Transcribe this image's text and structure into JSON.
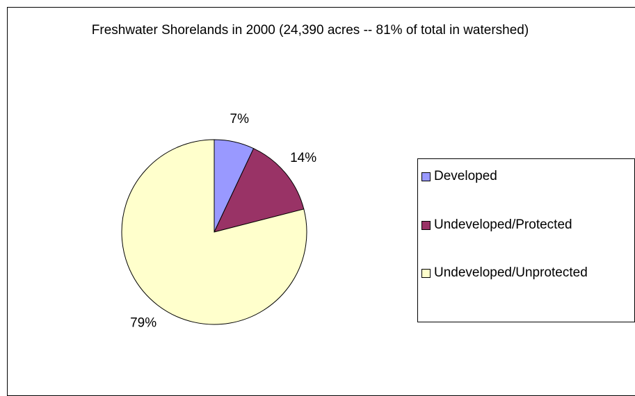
{
  "chart_data": {
    "type": "pie",
    "title": "Freshwater Shorelands in 2000 (24,390 acres -- 81% of total in watershed)",
    "categories": [
      "Developed",
      "Undeveloped/Protected",
      "Undeveloped/Unprotected"
    ],
    "values": [
      7,
      14,
      79
    ],
    "value_labels": [
      "7%",
      "14%",
      "79%"
    ],
    "colors": [
      "#9999ff",
      "#993366",
      "#ffffcc"
    ],
    "legend": "right"
  }
}
